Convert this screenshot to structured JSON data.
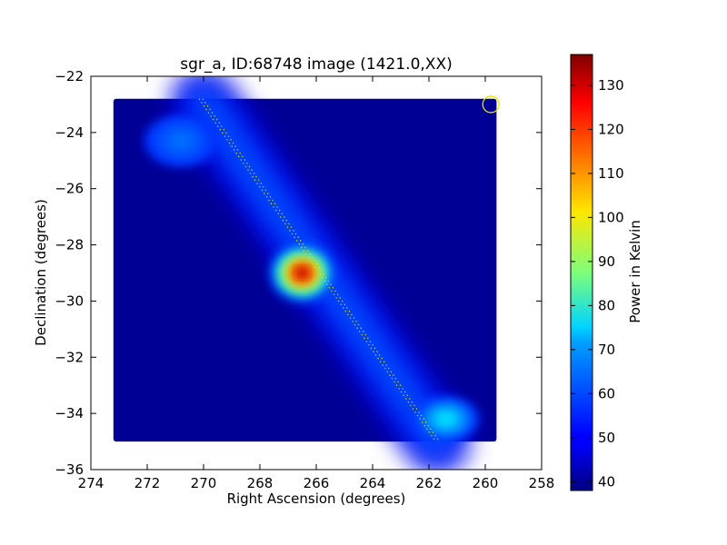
{
  "chart_data": {
    "type": "heatmap",
    "title": "sgr_a, ID:68748 image (1421.0,XX)",
    "xlabel": "Right Ascension (degrees)",
    "ylabel": "Declination (degrees)",
    "xlim": [
      274,
      258
    ],
    "ylim": [
      -36,
      -22
    ],
    "x_ticks": [
      274,
      272,
      270,
      268,
      266,
      264,
      262,
      260,
      258
    ],
    "x_tick_labels": [
      "274",
      "272",
      "270",
      "268",
      "266",
      "264",
      "262",
      "260",
      "258"
    ],
    "y_ticks": [
      -22,
      -24,
      -26,
      -28,
      -30,
      -32,
      -34,
      -36
    ],
    "y_tick_labels": [
      "−22",
      "−24",
      "−26",
      "−28",
      "−30",
      "−32",
      "−34",
      "−36"
    ],
    "colorbar": {
      "label": "Power in Kelvin",
      "range": [
        38,
        137
      ],
      "ticks": [
        40,
        50,
        60,
        70,
        80,
        90,
        100,
        110,
        120,
        130
      ],
      "tick_labels": [
        "40",
        "50",
        "60",
        "70",
        "80",
        "90",
        "100",
        "110",
        "120",
        "130"
      ],
      "colormap": "jet"
    },
    "map_extent": {
      "ra_range": [
        273.2,
        259.6
      ],
      "dec_range": [
        -35.0,
        -22.8
      ],
      "background_power": 40
    },
    "features": [
      {
        "ra": 266.5,
        "dec": -29.0,
        "peak_power": 137,
        "sigma_ra": 0.45,
        "sigma_dec": 0.4
      },
      {
        "ra": 261.4,
        "dec": -34.2,
        "peak_power": 75,
        "sigma_ra": 0.45,
        "sigma_dec": 0.3
      },
      {
        "ra": 270.8,
        "dec": -24.3,
        "peak_power": 62,
        "sigma_ra": 0.5,
        "sigma_dec": 0.35
      }
    ],
    "galactic_plane_band": {
      "start": [
        270.0,
        -22.9
      ],
      "end": [
        261.7,
        -35.0
      ],
      "power": 58
    },
    "scan_track": {
      "start": [
        270.1,
        -22.8
      ],
      "end": [
        261.7,
        -35.0
      ]
    },
    "beam_marker": {
      "ra": 259.8,
      "dec": -23.0
    }
  }
}
